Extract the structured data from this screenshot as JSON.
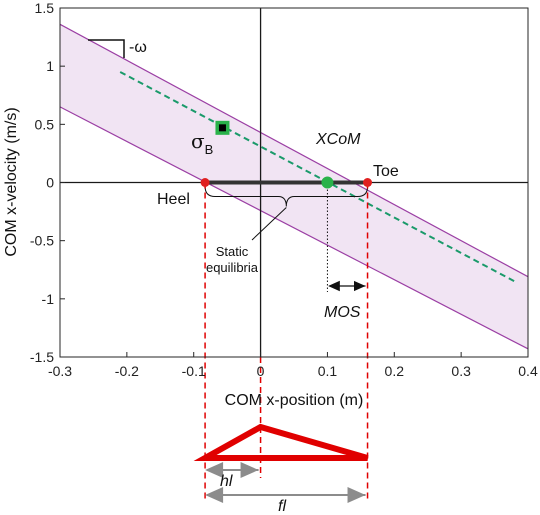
{
  "chart_data": {
    "type": "line",
    "xlabel": "COM x-position (m)",
    "ylabel": "COM x-velocity (m/s)",
    "xlim": [
      -0.3,
      0.4
    ],
    "ylim": [
      -1.5,
      1.5
    ],
    "xticks": [
      -0.3,
      -0.2,
      -0.1,
      0,
      0.1,
      0.2,
      0.3,
      0.4
    ],
    "yticks": [
      1.5,
      1,
      0.5,
      0,
      -0.5,
      -1,
      -1.5
    ],
    "xtick_labels": [
      "-0.3",
      "-0.2",
      "-0.1",
      "0",
      "0.1",
      "0.2",
      "0.3",
      "0.4"
    ],
    "ytick_labels": [
      "1.5",
      "1",
      "0.5",
      "0",
      "-0.5",
      "-1",
      "-1.5"
    ],
    "grid": false,
    "colors": {
      "band_fill": "#f1e4f3",
      "band_edge": "#9b3fa4",
      "xcom_line": "#1a9a6a",
      "xcom_point": "#2ab24a",
      "foot_points": "#e02020",
      "foot_segment": "#333333",
      "foot_shape": "#e00000",
      "dimension_arrow": "#8c8c8c"
    },
    "series": [
      {
        "x": [
          -0.3,
          0.4
        ],
        "y": [
          1.36,
          -0.81
        ]
      },
      {
        "x": [
          -0.3,
          0.4
        ],
        "y": [
          0.65,
          -1.43
        ]
      },
      {
        "x": [
          -0.21,
          0.38
        ],
        "y": [
          0.95,
          -0.85
        ]
      }
    ],
    "points": {
      "heel": {
        "x": -0.083,
        "y": 0,
        "label": "Heel"
      },
      "toe": {
        "x": 0.16,
        "y": 0,
        "label": "Toe"
      },
      "xcom": {
        "x": 0.1,
        "y": 0,
        "label": "XCoM"
      },
      "sigma_b": {
        "x": -0.057,
        "y": 0.47,
        "label": "σ",
        "subscript": "B"
      }
    },
    "annotations": {
      "slope": "-ω",
      "static": [
        "Static",
        "equilibria"
      ],
      "mos": "MOS",
      "hl": "hl",
      "fl": "fl"
    }
  }
}
